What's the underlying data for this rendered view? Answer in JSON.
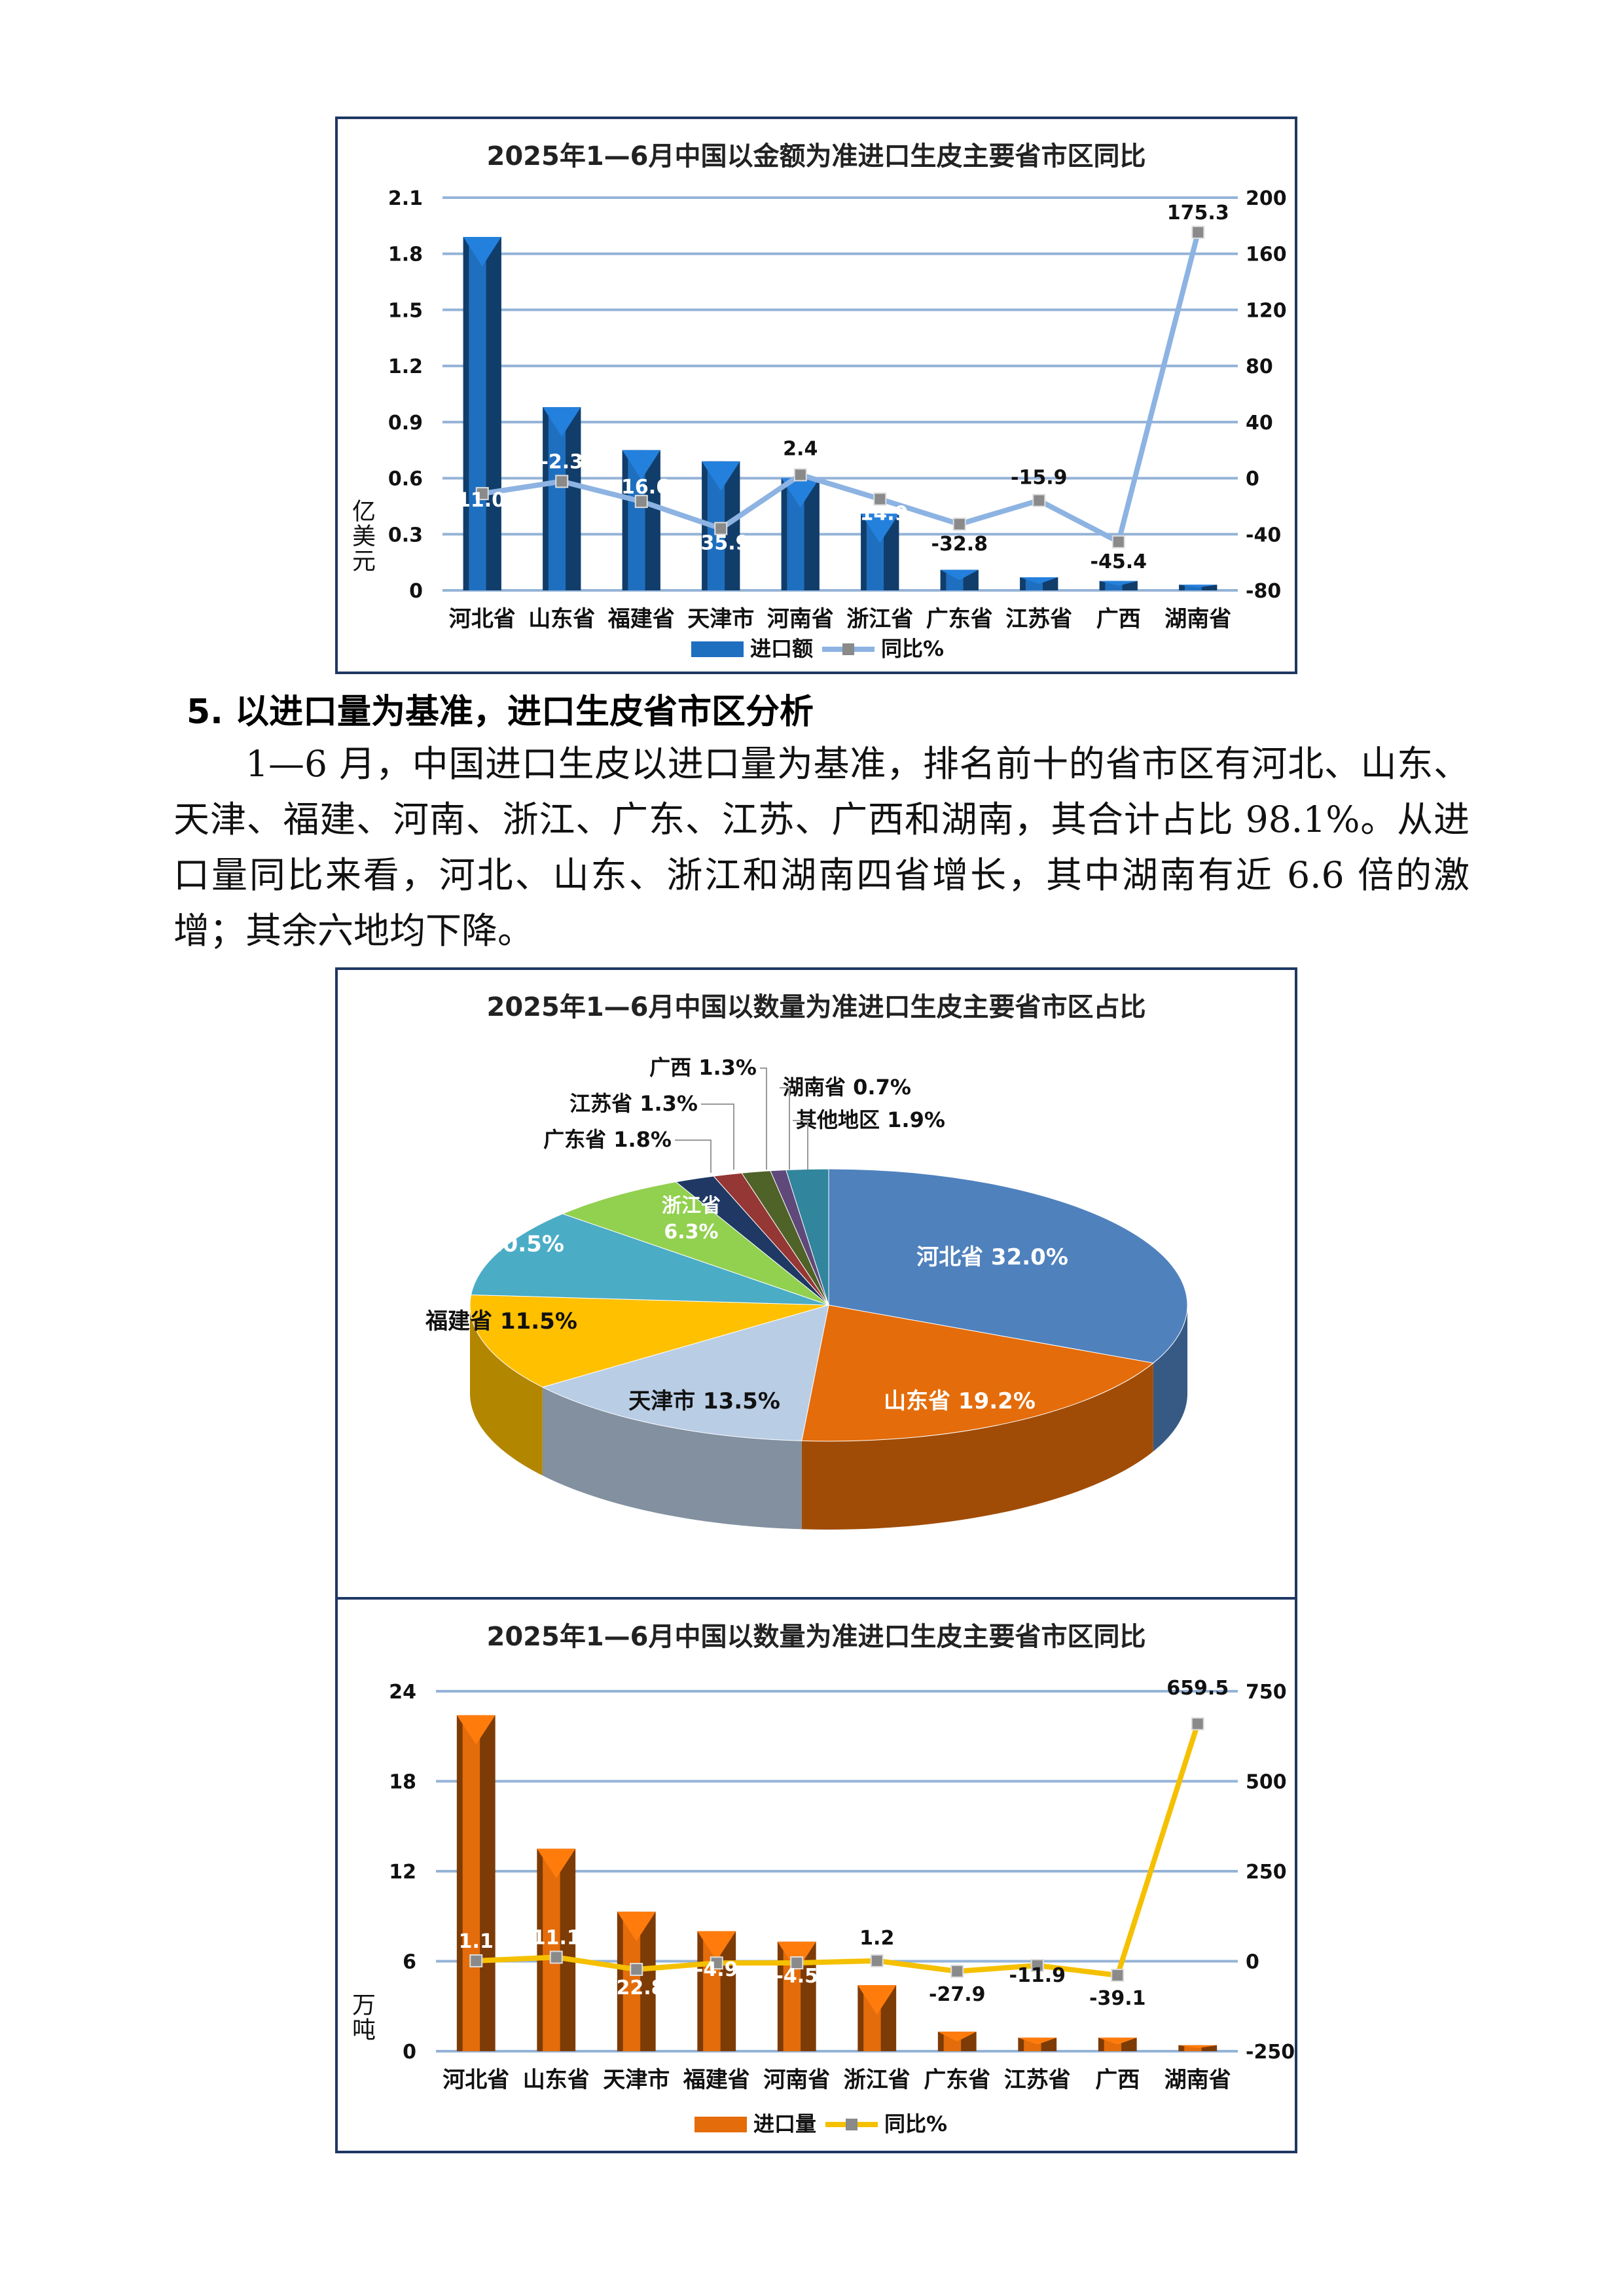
{
  "section": {
    "heading": "5. 以进口量为基准，进口生皮省市区分析",
    "paragraph": "1—6 月，中国进口生皮以进口量为基准，排名前十的省市区有河北、山东、天津、福建、河南、浙江、广东、江苏、广西和湖南，其合计占比 98.1%。从进口量同比来看，河北、山东、浙江和湖南四省增长，其中湖南有近 6.6 倍的激增；其余六地均下降。"
  },
  "chart_data": [
    {
      "type": "bar+line",
      "title": "2025年1—6月中国以金额为准进口生皮主要省市区同比",
      "ylabel": "亿美元",
      "categories": [
        "河北省",
        "山东省",
        "福建省",
        "天津市",
        "河南省",
        "浙江省",
        "广东省",
        "江苏省",
        "广西",
        "湖南省"
      ],
      "ylim": [
        0,
        2.1
      ],
      "yticks": [
        "0",
        "0.3",
        "0.6",
        "0.9",
        "1.2",
        "1.5",
        "1.8",
        "2.1"
      ],
      "y2lim": [
        -80,
        200
      ],
      "y2ticks": [
        "-80",
        "-40",
        "0",
        "40",
        "80",
        "120",
        "160",
        "200"
      ],
      "grid": true,
      "legend": "bottom",
      "series": [
        {
          "name": "进口额",
          "type": "bar",
          "color": "#1f6fc0",
          "values": [
            1.89,
            0.98,
            0.75,
            0.69,
            0.6,
            0.41,
            0.11,
            0.07,
            0.05,
            0.03
          ]
        },
        {
          "name": "同比%",
          "type": "line",
          "axis": "right",
          "color": "#8db3e2",
          "values": [
            -11.0,
            -2.3,
            -16.6,
            -35.9,
            2.4,
            -14.9,
            -32.8,
            -15.9,
            -45.4,
            175.3
          ],
          "labels": [
            "-11.0",
            "-2.3",
            "-16.6",
            "-35.9",
            "2.4",
            "-14.9",
            "-32.8",
            "-15.9",
            "-45.4",
            "175.3"
          ]
        }
      ]
    },
    {
      "type": "pie",
      "title": "2025年1—6月中国以数量为准进口生皮主要省市区占比",
      "slices": [
        {
          "name": "河北省",
          "value": 32.0,
          "label": "河北省 32.0%",
          "color": "#4f81bd"
        },
        {
          "name": "山东省",
          "value": 19.2,
          "label": "山东省 19.2%",
          "color": "#e46c0a"
        },
        {
          "name": "天津市",
          "value": 13.5,
          "label": "天津市 13.5%",
          "color": "#b9cde5"
        },
        {
          "name": "福建省",
          "value": 11.5,
          "label": "福建省 11.5%",
          "color": "#ffc000"
        },
        {
          "name": "河南省",
          "value": 10.5,
          "label": "河南省 10.5%",
          "color": "#4bacc6"
        },
        {
          "name": "浙江省",
          "value": 6.3,
          "label": "浙江省",
          "label2": "6.3%",
          "color": "#92d050"
        },
        {
          "name": "广东省",
          "value": 1.8,
          "label": "广东省 1.8%",
          "color": "#1f3864"
        },
        {
          "name": "江苏省",
          "value": 1.3,
          "label": "江苏省 1.3%",
          "color": "#953735"
        },
        {
          "name": "广西",
          "value": 1.3,
          "label": "广西 1.3%",
          "color": "#4f6228"
        },
        {
          "name": "湖南省",
          "value": 0.7,
          "label": "湖南省 0.7%",
          "color": "#5f497a"
        },
        {
          "name": "其他地区",
          "value": 1.9,
          "label": "其他地区 1.9%",
          "color": "#31859c"
        }
      ]
    },
    {
      "type": "bar+line",
      "title": "2025年1—6月中国以数量为准进口生皮主要省市区同比",
      "ylabel": "万吨",
      "categories": [
        "河北省",
        "山东省",
        "天津市",
        "福建省",
        "河南省",
        "浙江省",
        "广东省",
        "江苏省",
        "广西",
        "湖南省"
      ],
      "ylim": [
        0,
        24
      ],
      "yticks": [
        "0",
        "6",
        "12",
        "18",
        "24"
      ],
      "y2lim": [
        -250,
        750
      ],
      "y2ticks": [
        "-250",
        "0",
        "250",
        "500",
        "750"
      ],
      "grid": true,
      "legend": "bottom",
      "series": [
        {
          "name": "进口量",
          "type": "bar",
          "color": "#e46c0a",
          "values": [
            22.4,
            13.5,
            9.3,
            8.0,
            7.3,
            4.4,
            1.3,
            0.9,
            0.9,
            0.4
          ]
        },
        {
          "name": "同比%",
          "type": "line",
          "axis": "right",
          "color": "#f5c000",
          "values": [
            1.1,
            11.1,
            -22.8,
            -4.9,
            -4.5,
            1.2,
            -27.9,
            -11.9,
            -39.1,
            659.5
          ],
          "labels": [
            "1.1",
            "11.1",
            "-22.8",
            "-4.9",
            "-4.5",
            "1.2",
            "-27.9",
            "-11.9",
            "-39.1",
            "659.5"
          ]
        }
      ]
    }
  ]
}
